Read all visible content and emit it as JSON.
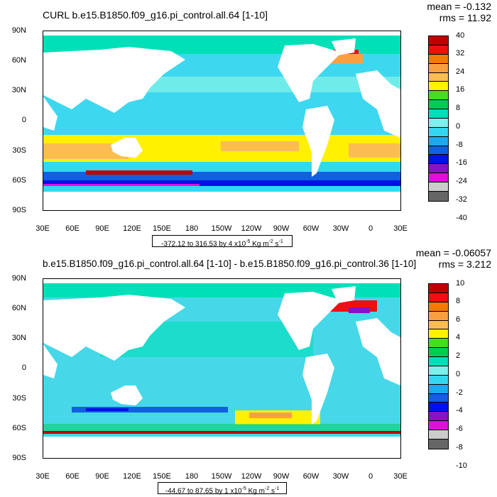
{
  "top": {
    "title": "CURL b.e15.B1850.f09_g16.pi_control.all.64 [1-10]",
    "mean": "mean = -0.132",
    "rms": "rms = 11.92",
    "range_prefix": "-372.12 to 316.53 by 4 x10",
    "colorbar_labels": [
      "40",
      "32",
      "24",
      "16",
      "8",
      "0",
      "-8",
      "-16",
      "-24",
      "-32",
      "-40"
    ]
  },
  "bottom": {
    "title": "b.e15.B1850.f09_g16.pi_control.all.64 [1-10] - b.e15.B1850.f09_g16.pi_control.36 [1-10]",
    "mean": "mean = -0.06057",
    "rms": "rms = 3.212",
    "range_prefix": "-44.67 to 87.65 by 1 x10",
    "colorbar_labels": [
      "10",
      "8",
      "6",
      "4",
      "2",
      "0",
      "-2",
      "-4",
      "-6",
      "-8",
      "-10"
    ]
  },
  "units": {
    "exp": "-5",
    "kg": " Kg m",
    "m_exp": "-2",
    "s": " s",
    "s_exp": "-1"
  },
  "lat_labels": [
    "90N",
    "60N",
    "30N",
    "0",
    "30S",
    "60S",
    "90S"
  ],
  "lon_labels": [
    "30E",
    "60E",
    "90E",
    "120E",
    "150E",
    "180",
    "150W",
    "120W",
    "90W",
    "60W",
    "30W",
    "0",
    "30E"
  ],
  "colors": {
    "colorbar": [
      "#c00000",
      "#ee1010",
      "#f57a00",
      "#fa9f40",
      "#fbbd52",
      "#fff100",
      "#44dd22",
      "#00cc55",
      "#00e0b8",
      "#7cf0ec",
      "#33d8f0",
      "#1ea8ee",
      "#1060e0",
      "#0010e8",
      "#8b10c8",
      "#e010d8",
      "#cccccc",
      "#666666"
    ],
    "land": "#ffffff",
    "ocean_top": "#3dd8f0",
    "ocean_bottom": "#46d8e8"
  }
}
